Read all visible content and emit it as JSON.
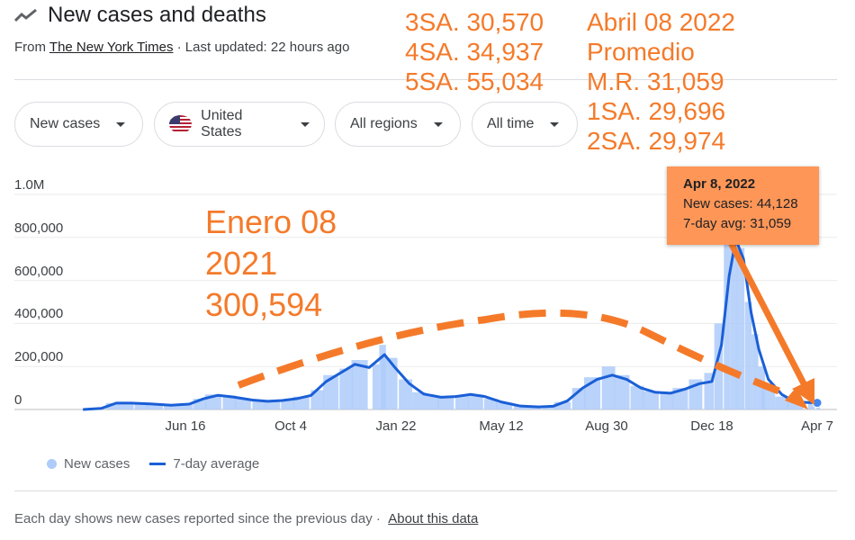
{
  "header": {
    "title": "New cases and deaths",
    "source_prefix": "From",
    "source": "The New York Times",
    "updated": "· Last updated: 22 hours ago"
  },
  "filters": [
    {
      "label": "New cases"
    },
    {
      "label": "United States"
    },
    {
      "label": "All regions"
    },
    {
      "label": "All time"
    }
  ],
  "annotations": {
    "left_col": [
      "3SA. 30,570",
      "4SA. 34,937",
      "5SA. 55,034"
    ],
    "right_col": [
      "Abril 08 2022",
      "Promedio",
      "M.R. 31,059",
      "1SA. 29,696",
      "2SA. 29,974"
    ],
    "peak_note": [
      "Enero 08",
      "2021",
      "300,594"
    ],
    "color": "#f47a2a"
  },
  "tooltip": {
    "date": "Apr 8, 2022",
    "new_cases": "New cases: 44,128",
    "avg": "7-day avg: 31,059"
  },
  "chart_data": {
    "type": "bar+line",
    "title": "New cases and deaths",
    "xlim": [
      "2020-03-01",
      "2022-04-08"
    ],
    "ylim": [
      0,
      1000000
    ],
    "y_ticks": [
      {
        "v": 0,
        "label": "0"
      },
      {
        "v": 200000,
        "label": "200,000"
      },
      {
        "v": 400000,
        "label": "400,000"
      },
      {
        "v": 600000,
        "label": "600,000"
      },
      {
        "v": 800000,
        "label": "800,000"
      },
      {
        "v": 1000000,
        "label": "1.0M"
      }
    ],
    "x_ticks": [
      {
        "d": "2020-06-16",
        "label": "Jun 16"
      },
      {
        "d": "2020-10-04",
        "label": "Oct 4"
      },
      {
        "d": "2021-01-22",
        "label": "Jan 22"
      },
      {
        "d": "2021-05-12",
        "label": "May 12"
      },
      {
        "d": "2021-08-30",
        "label": "Aug 30"
      },
      {
        "d": "2021-12-18",
        "label": "Dec 18"
      },
      {
        "d": "2022-04-07",
        "label": "Apr 7"
      }
    ],
    "series": [
      {
        "name": "New cases",
        "color": "#aecbfa",
        "points": [
          [
            "2020-03-15",
            5000
          ],
          [
            "2020-04-01",
            30000
          ],
          [
            "2020-04-15",
            33000
          ],
          [
            "2020-05-01",
            30000
          ],
          [
            "2020-05-15",
            25000
          ],
          [
            "2020-06-01",
            22000
          ],
          [
            "2020-06-16",
            25000
          ],
          [
            "2020-07-01",
            50000
          ],
          [
            "2020-07-15",
            70000
          ],
          [
            "2020-08-01",
            65000
          ],
          [
            "2020-08-15",
            50000
          ],
          [
            "2020-09-01",
            42000
          ],
          [
            "2020-09-15",
            40000
          ],
          [
            "2020-10-01",
            45000
          ],
          [
            "2020-10-15",
            60000
          ],
          [
            "2020-11-01",
            90000
          ],
          [
            "2020-11-15",
            160000
          ],
          [
            "2020-12-01",
            190000
          ],
          [
            "2020-12-15",
            230000
          ],
          [
            "2021-01-01",
            210000
          ],
          [
            "2021-01-08",
            300594
          ],
          [
            "2021-01-15",
            240000
          ],
          [
            "2021-02-01",
            140000
          ],
          [
            "2021-02-15",
            80000
          ],
          [
            "2021-03-01",
            65000
          ],
          [
            "2021-03-15",
            55000
          ],
          [
            "2021-04-01",
            65000
          ],
          [
            "2021-04-15",
            70000
          ],
          [
            "2021-05-01",
            50000
          ],
          [
            "2021-05-15",
            32000
          ],
          [
            "2021-06-01",
            18000
          ],
          [
            "2021-06-15",
            12000
          ],
          [
            "2021-07-01",
            15000
          ],
          [
            "2021-07-15",
            35000
          ],
          [
            "2021-08-01",
            100000
          ],
          [
            "2021-08-15",
            150000
          ],
          [
            "2021-09-01",
            200000
          ],
          [
            "2021-09-15",
            160000
          ],
          [
            "2021-10-01",
            110000
          ],
          [
            "2021-10-15",
            85000
          ],
          [
            "2021-11-01",
            80000
          ],
          [
            "2021-11-15",
            100000
          ],
          [
            "2021-12-01",
            140000
          ],
          [
            "2021-12-15",
            170000
          ],
          [
            "2021-12-25",
            400000
          ],
          [
            "2022-01-03",
            900000
          ],
          [
            "2022-01-10",
            1000000
          ],
          [
            "2022-01-17",
            750000
          ],
          [
            "2022-01-25",
            500000
          ],
          [
            "2022-02-01",
            350000
          ],
          [
            "2022-02-08",
            200000
          ],
          [
            "2022-02-15",
            120000
          ],
          [
            "2022-03-01",
            60000
          ],
          [
            "2022-03-15",
            35000
          ],
          [
            "2022-04-01",
            30000
          ],
          [
            "2022-04-08",
            44128
          ]
        ]
      },
      {
        "name": "7-day average",
        "color": "#1a5fd6",
        "points": [
          [
            "2020-03-01",
            0
          ],
          [
            "2020-03-20",
            5000
          ],
          [
            "2020-04-05",
            30000
          ],
          [
            "2020-04-20",
            30000
          ],
          [
            "2020-05-10",
            26000
          ],
          [
            "2020-06-01",
            20000
          ],
          [
            "2020-06-20",
            25000
          ],
          [
            "2020-07-05",
            50000
          ],
          [
            "2020-07-20",
            66000
          ],
          [
            "2020-08-05",
            58000
          ],
          [
            "2020-08-25",
            44000
          ],
          [
            "2020-09-10",
            38000
          ],
          [
            "2020-09-25",
            42000
          ],
          [
            "2020-10-10",
            50000
          ],
          [
            "2020-10-25",
            65000
          ],
          [
            "2020-11-10",
            130000
          ],
          [
            "2020-11-25",
            170000
          ],
          [
            "2020-12-10",
            210000
          ],
          [
            "2020-12-25",
            195000
          ],
          [
            "2021-01-10",
            255000
          ],
          [
            "2021-01-20",
            200000
          ],
          [
            "2021-02-05",
            120000
          ],
          [
            "2021-02-20",
            72000
          ],
          [
            "2021-03-10",
            57000
          ],
          [
            "2021-03-25",
            60000
          ],
          [
            "2021-04-10",
            70000
          ],
          [
            "2021-04-25",
            60000
          ],
          [
            "2021-05-12",
            35000
          ],
          [
            "2021-06-01",
            16000
          ],
          [
            "2021-06-20",
            12000
          ],
          [
            "2021-07-05",
            15000
          ],
          [
            "2021-07-20",
            40000
          ],
          [
            "2021-08-05",
            100000
          ],
          [
            "2021-08-20",
            140000
          ],
          [
            "2021-09-05",
            160000
          ],
          [
            "2021-09-20",
            140000
          ],
          [
            "2021-10-05",
            100000
          ],
          [
            "2021-10-20",
            80000
          ],
          [
            "2021-11-05",
            76000
          ],
          [
            "2021-11-20",
            95000
          ],
          [
            "2021-12-05",
            120000
          ],
          [
            "2021-12-18",
            130000
          ],
          [
            "2021-12-28",
            300000
          ],
          [
            "2022-01-05",
            620000
          ],
          [
            "2022-01-12",
            790000
          ],
          [
            "2022-01-20",
            700000
          ],
          [
            "2022-01-28",
            450000
          ],
          [
            "2022-02-05",
            280000
          ],
          [
            "2022-02-15",
            140000
          ],
          [
            "2022-03-01",
            70000
          ],
          [
            "2022-03-15",
            35000
          ],
          [
            "2022-04-07",
            31059
          ]
        ]
      }
    ]
  },
  "legend": {
    "cases": "New cases",
    "avg": "7-day average"
  },
  "footer": {
    "text": "Each day shows new cases reported since the previous day ·",
    "link": "About this data"
  }
}
